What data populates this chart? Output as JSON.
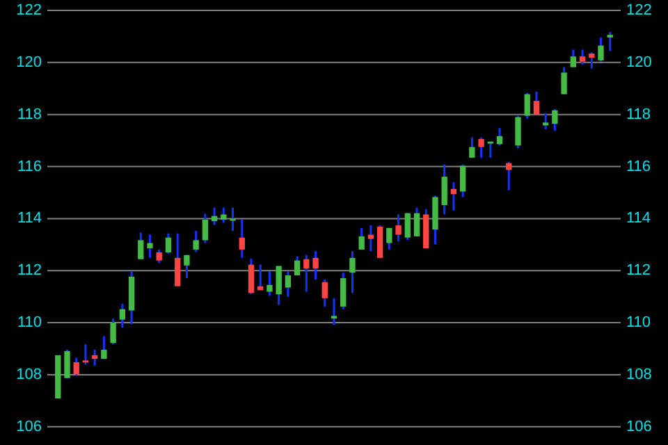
{
  "chart_data": {
    "type": "candlestick",
    "categories": [
      null,
      null,
      null,
      null,
      null,
      null,
      null,
      null,
      null,
      null,
      null,
      null,
      null,
      null,
      null,
      null,
      null,
      null,
      null,
      null,
      null,
      null,
      null,
      null,
      null,
      null,
      null,
      null,
      null,
      null,
      null,
      null,
      null,
      null,
      null,
      null,
      null,
      null,
      null,
      null,
      null,
      null,
      null,
      null,
      null,
      null,
      null,
      null,
      null,
      null,
      null,
      null,
      null,
      null,
      null,
      null,
      null,
      null,
      null,
      null,
      null
    ],
    "ohlc": [
      [
        107.09,
        108.75,
        107.09,
        108.75
      ],
      [
        107.87,
        108.96,
        107.85,
        108.91
      ],
      [
        108.48,
        108.65,
        107.96,
        108.01
      ],
      [
        108.55,
        109.17,
        108.39,
        108.5
      ],
      [
        108.75,
        108.96,
        108.35,
        108.61
      ],
      [
        108.61,
        109.48,
        108.6,
        108.96
      ],
      [
        109.22,
        110.16,
        109.17,
        110.0
      ],
      [
        110.12,
        110.73,
        109.81,
        110.52
      ],
      [
        110.47,
        111.97,
        109.95,
        111.77
      ],
      [
        112.44,
        113.46,
        112.43,
        113.17
      ],
      [
        112.86,
        113.38,
        112.49,
        113.06
      ],
      [
        112.7,
        112.81,
        112.29,
        112.39
      ],
      [
        112.7,
        113.43,
        112.65,
        113.27
      ],
      [
        112.49,
        113.43,
        111.4,
        111.4
      ],
      [
        112.2,
        112.6,
        111.71,
        112.6
      ],
      [
        112.81,
        113.53,
        112.72,
        113.17
      ],
      [
        113.17,
        114.19,
        113.06,
        113.96
      ],
      [
        113.9,
        114.42,
        113.76,
        114.1
      ],
      [
        113.96,
        114.42,
        113.84,
        114.16
      ],
      [
        113.97,
        114.42,
        113.53,
        114.0
      ],
      [
        113.27,
        113.96,
        112.49,
        112.81
      ],
      [
        112.23,
        112.46,
        111.11,
        111.14
      ],
      [
        111.4,
        112.23,
        111.25,
        111.25
      ],
      [
        111.19,
        111.97,
        111.04,
        111.45
      ],
      [
        111.09,
        112.18,
        110.68,
        112.18
      ],
      [
        111.35,
        111.97,
        110.99,
        111.82
      ],
      [
        111.82,
        112.55,
        111.82,
        112.39
      ],
      [
        112.44,
        112.6,
        111.19,
        112.08
      ],
      [
        112.49,
        112.75,
        111.66,
        112.08
      ],
      [
        111.56,
        111.66,
        110.62,
        110.94
      ],
      [
        110.16,
        110.94,
        109.92,
        110.26
      ],
      [
        110.62,
        111.92,
        110.52,
        111.71
      ],
      [
        111.92,
        112.75,
        111.14,
        112.49
      ],
      [
        112.81,
        113.64,
        112.81,
        113.32
      ],
      [
        113.38,
        113.74,
        112.75,
        113.22
      ],
      [
        113.69,
        113.74,
        112.49,
        112.49
      ],
      [
        113.06,
        113.64,
        112.81,
        113.64
      ],
      [
        113.74,
        114.16,
        113.12,
        113.38
      ],
      [
        113.27,
        114.21,
        113.18,
        114.21
      ],
      [
        113.32,
        114.42,
        113.32,
        114.21
      ],
      [
        114.16,
        114.36,
        112.86,
        112.86
      ],
      [
        113.58,
        114.88,
        113.01,
        114.83
      ],
      [
        114.52,
        116.08,
        114.16,
        115.61
      ],
      [
        115.14,
        115.4,
        114.31,
        114.94
      ],
      [
        115.04,
        116.08,
        114.83,
        116.03
      ],
      [
        116.34,
        117.12,
        116.34,
        116.75
      ],
      [
        117.06,
        117.12,
        116.34,
        116.75
      ],
      [
        116.91,
        116.96,
        116.34,
        116.96
      ],
      [
        116.86,
        117.48,
        116.81,
        117.17
      ],
      [
        116.13,
        116.18,
        115.09,
        115.87
      ],
      [
        116.81,
        117.95,
        116.7,
        117.9
      ],
      [
        117.95,
        118.83,
        117.84,
        118.78
      ],
      [
        118.52,
        118.88,
        118.0,
        118.0
      ],
      [
        117.58,
        118.05,
        117.43,
        117.69
      ],
      [
        117.64,
        118.21,
        117.38,
        118.16
      ],
      [
        118.78,
        119.82,
        118.78,
        119.61
      ],
      [
        119.82,
        120.49,
        119.82,
        120.23
      ],
      [
        120.23,
        120.49,
        119.92,
        120.03
      ],
      [
        120.34,
        120.39,
        119.77,
        120.18
      ],
      [
        120.08,
        120.96,
        120.03,
        120.65
      ],
      [
        120.96,
        121.17,
        120.44,
        121.06
      ]
    ],
    "colors": [
      "#44bb44",
      "#44bb44",
      "#ff4444",
      "#ff4444",
      "#ff4444",
      "#44bb44",
      "#44bb44",
      "#44bb44",
      "#44bb44",
      "#44bb44",
      "#44bb44",
      "#ff4444",
      "#44bb44",
      "#ff4444",
      "#44bb44",
      "#44bb44",
      "#44bb44",
      "#44bb44",
      "#44bb44",
      "#44bb44",
      "#ff4444",
      "#ff4444",
      "#ff4444",
      "#44bb44",
      "#44bb44",
      "#44bb44",
      "#44bb44",
      "#ff4444",
      "#ff4444",
      "#ff4444",
      "#44bb44",
      "#44bb44",
      "#44bb44",
      "#44bb44",
      "#ff4444",
      "#ff4444",
      "#44bb44",
      "#ff4444",
      "#44bb44",
      "#44bb44",
      "#ff4444",
      "#44bb44",
      "#44bb44",
      "#ff4444",
      "#44bb44",
      "#44bb44",
      "#ff4444",
      "#44bb44",
      "#44bb44",
      "#ff4444",
      "#44bb44",
      "#44bb44",
      "#ff4444",
      "#44bb44",
      "#44bb44",
      "#44bb44",
      "#44bb44",
      "#ff4444",
      "#ff4444",
      "#44bb44",
      "#44bb44"
    ],
    "ylim": [
      105.3,
      122.4
    ],
    "yticks": [
      106,
      108,
      110,
      112,
      114,
      116,
      118,
      120,
      122
    ],
    "y2lim": [
      105.3,
      122.4
    ],
    "y2ticks": [
      106,
      108,
      110,
      112,
      114,
      116,
      118,
      120,
      122
    ],
    "grid": "y",
    "tick_labels": "y"
  }
}
